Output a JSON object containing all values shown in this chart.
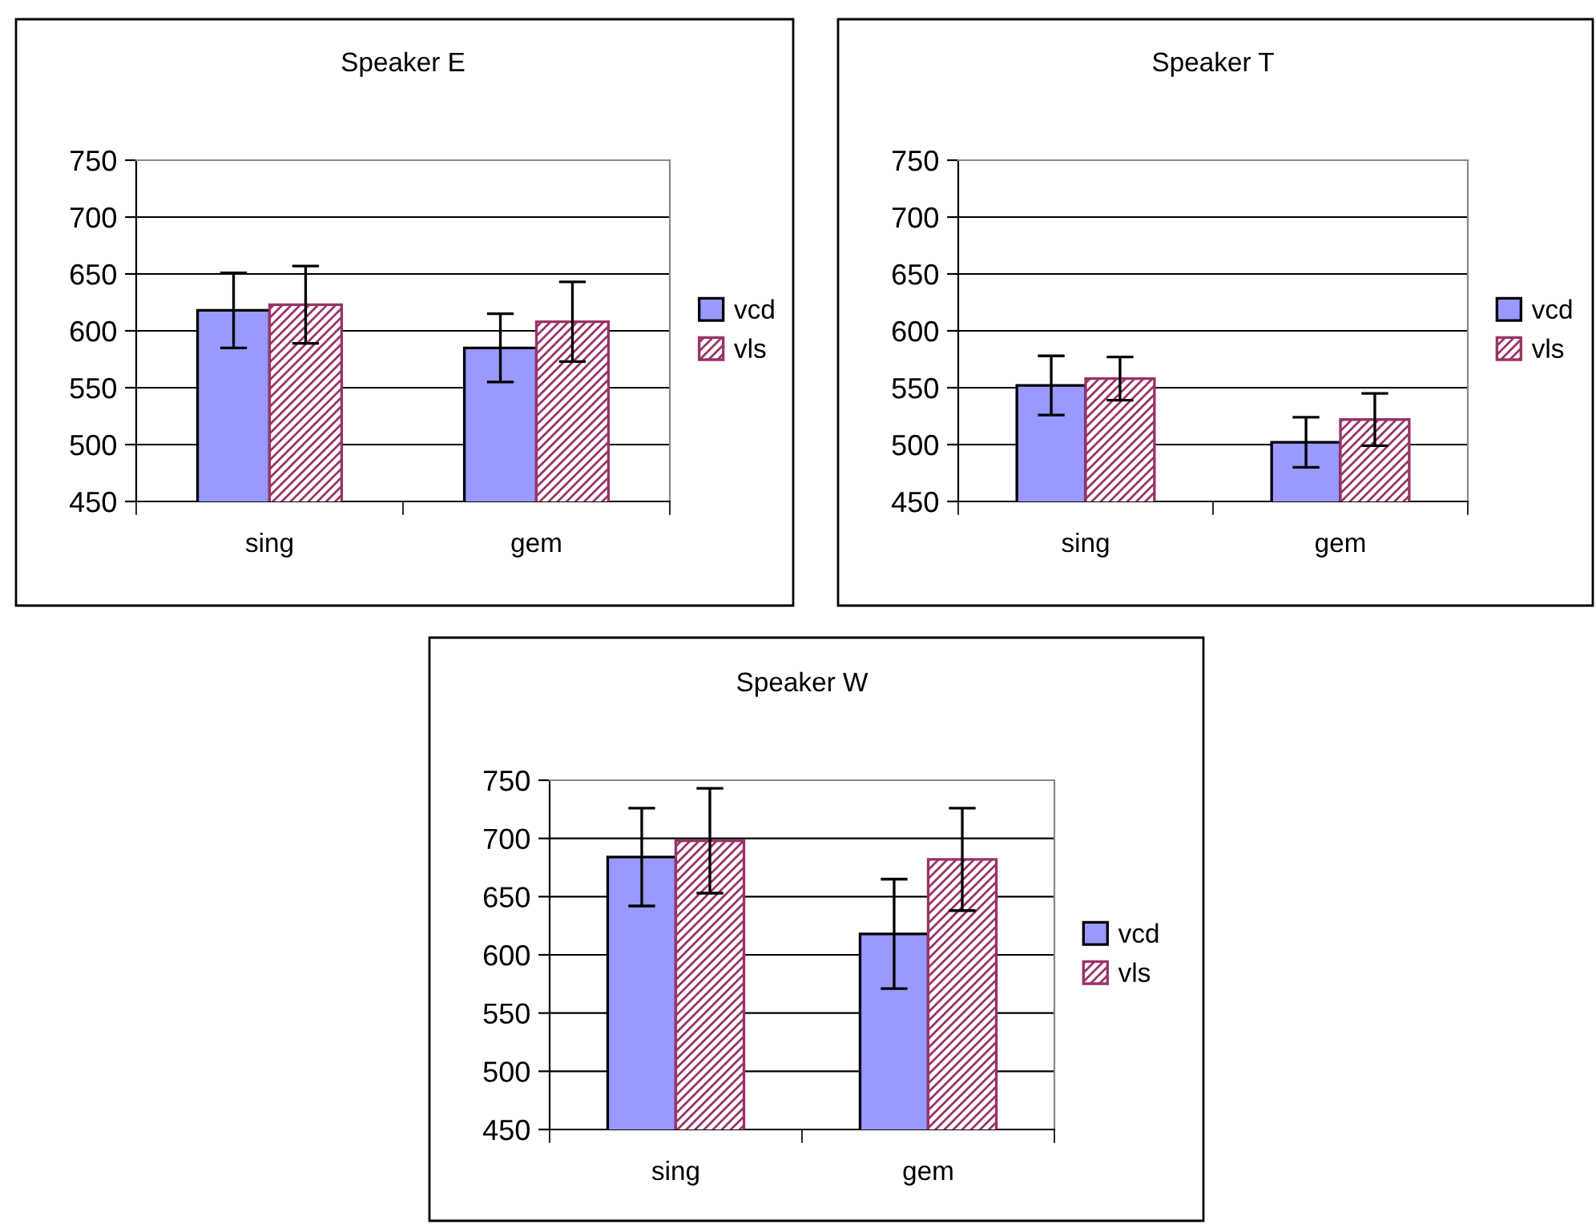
{
  "chart_data": [
    {
      "type": "bar",
      "title": "Speaker E",
      "categories": [
        "sing",
        "gem"
      ],
      "ylim": [
        450,
        750
      ],
      "yticks": [
        450,
        500,
        550,
        600,
        650,
        700,
        750
      ],
      "grid": "y",
      "legend": "right",
      "series": [
        {
          "name": "vcd",
          "color": "#9999ff",
          "values": [
            618,
            585
          ],
          "errors": [
            33,
            30
          ]
        },
        {
          "name": "vls",
          "color": "#993366",
          "values": [
            623,
            608
          ],
          "errors": [
            34,
            35
          ]
        }
      ]
    },
    {
      "type": "bar",
      "title": "Speaker T",
      "categories": [
        "sing",
        "gem"
      ],
      "ylim": [
        450,
        750
      ],
      "yticks": [
        450,
        500,
        550,
        600,
        650,
        700,
        750
      ],
      "grid": "y",
      "legend": "right",
      "series": [
        {
          "name": "vcd",
          "color": "#9999ff",
          "values": [
            552,
            502
          ],
          "errors": [
            26,
            22
          ]
        },
        {
          "name": "vls",
          "color": "#993366",
          "values": [
            558,
            522
          ],
          "errors": [
            19,
            23
          ]
        }
      ]
    },
    {
      "type": "bar",
      "title": "Speaker W",
      "categories": [
        "sing",
        "gem"
      ],
      "ylim": [
        450,
        750
      ],
      "yticks": [
        450,
        500,
        550,
        600,
        650,
        700,
        750
      ],
      "grid": "y",
      "legend": "right",
      "series": [
        {
          "name": "vcd",
          "color": "#9999ff",
          "values": [
            684,
            618
          ],
          "errors": [
            42,
            47
          ]
        },
        {
          "name": "vls",
          "color": "#993366",
          "values": [
            698,
            682
          ],
          "errors": [
            45,
            44
          ]
        }
      ]
    }
  ]
}
